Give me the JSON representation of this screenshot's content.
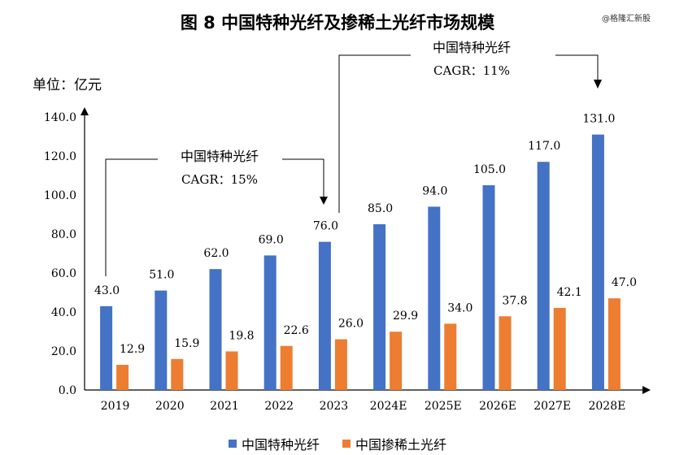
{
  "title": "图 8 中国特种光纤及掺稀土光纤市场规模",
  "watermark": "@格隆汇新股",
  "unit_label": "单位：亿元",
  "colors": {
    "series1": "#4472C4",
    "series2": "#ED7D31",
    "axis": "#000000"
  },
  "annotations": [
    {
      "name": "中国特种光纤",
      "cagr": "CAGR：15%"
    },
    {
      "name": "中国特种光纤",
      "cagr": "CAGR：11%"
    }
  ],
  "chart_data": {
    "type": "bar",
    "title": "图 8 中国特种光纤及掺稀土光纤市场规模",
    "ylabel": "单位：亿元",
    "ylim": [
      0,
      140
    ],
    "yticks": [
      "0.0",
      "20.0",
      "40.0",
      "60.0",
      "80.0",
      "100.0",
      "120.0",
      "140.0"
    ],
    "categories": [
      "2019",
      "2020",
      "2021",
      "2022",
      "2023",
      "2024E",
      "2025E",
      "2026E",
      "2027E",
      "2028E"
    ],
    "series": [
      {
        "name": "中国特种光纤",
        "values": [
          43.0,
          51.0,
          62.0,
          69.0,
          76.0,
          85.0,
          94.0,
          105.0,
          117.0,
          131.0
        ],
        "labels": [
          "43.0",
          "51.0",
          "62.0",
          "69.0",
          "76.0",
          "85.0",
          "94.0",
          "105.0",
          "117.0",
          "131.0"
        ]
      },
      {
        "name": "中国掺稀土光纤",
        "values": [
          12.9,
          15.9,
          19.8,
          22.6,
          26.0,
          29.9,
          34.0,
          37.8,
          42.1,
          47.0
        ],
        "labels": [
          "12.9",
          "15.9",
          "19.8",
          "22.6",
          "26.0",
          "29.9",
          "34.0",
          "37.8",
          "42.1",
          "47.0"
        ]
      }
    ],
    "legend_position": "bottom",
    "grid": false
  }
}
